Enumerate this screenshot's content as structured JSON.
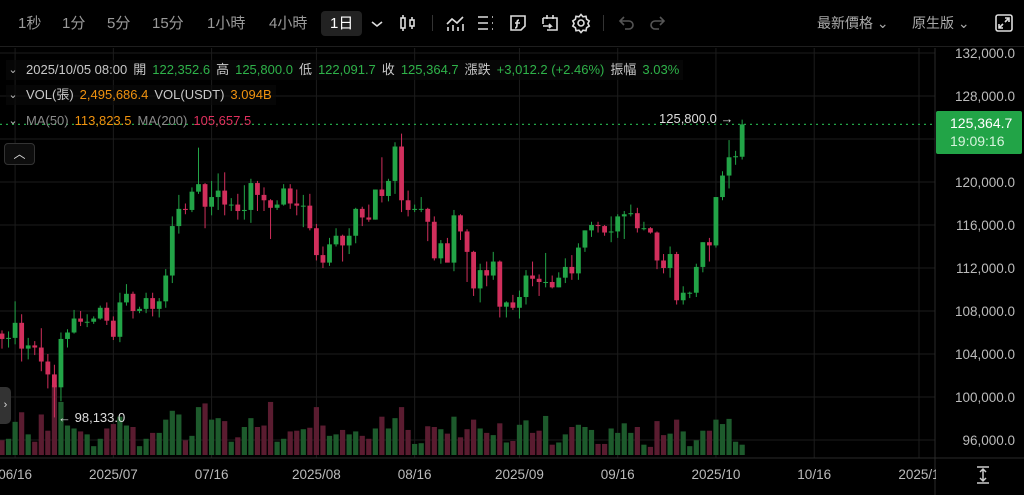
{
  "toolbar": {
    "timeframes": [
      "1秒",
      "1分",
      "5分",
      "15分",
      "1小時",
      "4小時",
      "1日"
    ],
    "active_timeframe": "1日",
    "price_type": "最新價格",
    "chart_mode": "原生版"
  },
  "legend": {
    "datetime": "2025/10/05 08:00",
    "open_label": "開",
    "open": "122,352.6",
    "high_label": "高",
    "high": "125,800.0",
    "low_label": "低",
    "low": "122,091.7",
    "close_label": "收",
    "close": "125,364.7",
    "change_label": "漲跌",
    "change": "+3,012.2 (+2.46%)",
    "amplitude_label": "振幅",
    "amplitude": "3.03%",
    "vol_contracts_label": "VOL(張)",
    "vol_contracts": "2,495,686.4",
    "vol_usdt_label": "VOL(USDT)",
    "vol_usdt": "3.094B",
    "ma50_label": "MA(50)",
    "ma50": "113,823.5",
    "ma200_label": "MA(200)",
    "ma200": "105,657.5"
  },
  "markers": {
    "high": "125,800.0",
    "low": "98,133.0"
  },
  "price_tag": {
    "price": "125,364.7",
    "countdown": "19:09:16"
  },
  "colors": {
    "up": "#22a447",
    "down": "#d12f5c",
    "vol_up": "#1d5a2c",
    "vol_down": "#5a1c30",
    "grid": "#1c1c1c"
  },
  "chart_data": {
    "type": "candlestick",
    "price_unit": 1000,
    "y_ticks": [
      "132,000.0",
      "128,000.0",
      "120,000.0",
      "116,000.0",
      "112,000.0",
      "108,000.0",
      "104,000.0",
      "100,000.0",
      "96,000.0"
    ],
    "y_tick_values": [
      132,
      128,
      120,
      116,
      112,
      108,
      104,
      100,
      96
    ],
    "x_ticks": [
      [
        "06/16",
        2
      ],
      [
        "2025/07",
        17
      ],
      [
        "07/16",
        32
      ],
      [
        "2025/08",
        48
      ],
      [
        "08/16",
        63
      ],
      [
        "2025/09",
        79
      ],
      [
        "09/16",
        94
      ],
      [
        "2025/10",
        109
      ],
      [
        "10/16",
        124
      ],
      [
        "2025/1",
        140
      ]
    ],
    "fields": [
      "date",
      "open",
      "high",
      "low",
      "close",
      "volume"
    ],
    "candles": [
      [
        "06/14",
        105.9,
        106.2,
        104.5,
        105.4,
        20
      ],
      [
        "06/15",
        105.4,
        106.1,
        104.6,
        105.5,
        22
      ],
      [
        "06/16",
        105.5,
        108.9,
        104.9,
        106.9,
        45
      ],
      [
        "06/17",
        106.9,
        107.7,
        103.3,
        104.5,
        58
      ],
      [
        "06/18",
        104.5,
        105.5,
        103.5,
        104.8,
        28
      ],
      [
        "06/19",
        104.8,
        105.2,
        103.9,
        104.6,
        18
      ],
      [
        "06/20",
        104.6,
        106.4,
        102.4,
        103.3,
        55
      ],
      [
        "06/21",
        103.3,
        104.0,
        100.8,
        102.1,
        33
      ],
      [
        "06/22",
        102.1,
        103.0,
        98.1,
        100.9,
        95
      ],
      [
        "06/23",
        100.9,
        106.0,
        99.6,
        105.4,
        72
      ],
      [
        "06/24",
        105.4,
        106.3,
        104.6,
        106.0,
        40
      ],
      [
        "06/25",
        106.0,
        108.1,
        105.9,
        107.3,
        36
      ],
      [
        "06/26",
        107.3,
        108.0,
        106.6,
        107.0,
        32
      ],
      [
        "06/27",
        107.0,
        107.7,
        106.5,
        107.0,
        28
      ],
      [
        "06/28",
        107.0,
        107.5,
        106.8,
        107.3,
        12
      ],
      [
        "06/29",
        107.3,
        108.5,
        107.2,
        108.3,
        22
      ],
      [
        "06/30",
        108.3,
        108.8,
        106.7,
        107.1,
        36
      ],
      [
        "07/01",
        107.1,
        107.5,
        105.3,
        105.6,
        42
      ],
      [
        "07/02",
        105.6,
        109.7,
        105.1,
        108.8,
        52
      ],
      [
        "07/03",
        108.8,
        110.5,
        108.5,
        109.6,
        40
      ],
      [
        "07/04",
        109.6,
        109.8,
        107.3,
        108.0,
        38
      ],
      [
        "07/05",
        108.0,
        108.4,
        107.8,
        108.2,
        12
      ],
      [
        "07/06",
        108.2,
        109.7,
        107.8,
        109.2,
        22
      ],
      [
        "07/07",
        109.2,
        109.7,
        107.5,
        108.2,
        30
      ],
      [
        "07/08",
        108.2,
        109.2,
        107.4,
        108.9,
        30
      ],
      [
        "07/09",
        108.9,
        111.9,
        108.3,
        111.3,
        48
      ],
      [
        "07/10",
        111.3,
        116.8,
        110.6,
        115.9,
        60
      ],
      [
        "07/11",
        115.9,
        118.8,
        115.2,
        117.5,
        55
      ],
      [
        "07/12",
        117.5,
        118.0,
        117.0,
        117.4,
        20
      ],
      [
        "07/13",
        117.4,
        119.5,
        117.2,
        119.1,
        26
      ],
      [
        "07/14",
        119.1,
        123.2,
        118.9,
        119.8,
        65
      ],
      [
        "07/15",
        119.8,
        119.9,
        115.7,
        117.7,
        70
      ],
      [
        "07/16",
        117.7,
        120.1,
        116.9,
        118.6,
        48
      ],
      [
        "07/17",
        118.6,
        120.8,
        117.4,
        119.2,
        50
      ],
      [
        "07/18",
        119.2,
        120.9,
        116.9,
        117.9,
        46
      ],
      [
        "07/19",
        117.9,
        118.5,
        117.3,
        117.9,
        18
      ],
      [
        "07/20",
        117.9,
        118.9,
        116.5,
        117.3,
        24
      ],
      [
        "07/21",
        117.3,
        119.7,
        116.5,
        117.4,
        38
      ],
      [
        "07/22",
        117.4,
        120.3,
        116.2,
        119.9,
        50
      ],
      [
        "07/23",
        119.9,
        120.1,
        117.3,
        118.8,
        38
      ],
      [
        "07/24",
        118.8,
        119.5,
        117.3,
        118.3,
        40
      ],
      [
        "07/25",
        118.3,
        118.4,
        114.7,
        117.6,
        72
      ],
      [
        "07/26",
        117.6,
        118.3,
        117.4,
        117.9,
        18
      ],
      [
        "07/27",
        117.9,
        119.8,
        117.8,
        119.4,
        22
      ],
      [
        "07/28",
        119.4,
        119.8,
        117.5,
        118.0,
        32
      ],
      [
        "07/29",
        118.0,
        119.3,
        116.9,
        117.8,
        33
      ],
      [
        "07/30",
        117.8,
        118.8,
        115.8,
        117.8,
        35
      ],
      [
        "07/31",
        117.8,
        118.9,
        115.5,
        115.7,
        37
      ],
      [
        "08/01",
        115.7,
        116.1,
        112.7,
        113.2,
        65
      ],
      [
        "08/02",
        113.2,
        114.0,
        112.0,
        112.5,
        40
      ],
      [
        "08/03",
        112.5,
        114.8,
        112.2,
        114.2,
        26
      ],
      [
        "08/04",
        114.2,
        115.7,
        114.0,
        115.0,
        28
      ],
      [
        "08/05",
        115.0,
        115.1,
        112.6,
        114.1,
        34
      ],
      [
        "08/06",
        114.1,
        115.7,
        113.3,
        115.0,
        28
      ],
      [
        "08/07",
        115.0,
        117.6,
        114.3,
        117.5,
        32
      ],
      [
        "08/08",
        117.5,
        117.7,
        115.9,
        116.7,
        26
      ],
      [
        "08/09",
        116.7,
        117.9,
        116.3,
        116.5,
        22
      ],
      [
        "08/10",
        116.5,
        119.3,
        116.5,
        119.3,
        36
      ],
      [
        "08/11",
        119.3,
        122.3,
        118.1,
        118.7,
        52
      ],
      [
        "08/12",
        118.7,
        120.3,
        118.2,
        120.1,
        36
      ],
      [
        "08/13",
        120.1,
        123.7,
        118.9,
        123.3,
        50
      ],
      [
        "08/14",
        123.3,
        124.5,
        117.2,
        118.3,
        65
      ],
      [
        "08/15",
        118.3,
        119.2,
        116.8,
        117.4,
        34
      ],
      [
        "08/16",
        117.4,
        117.9,
        117.2,
        117.5,
        15
      ],
      [
        "08/17",
        117.5,
        118.6,
        117.2,
        117.5,
        16
      ],
      [
        "08/18",
        117.5,
        117.6,
        114.5,
        116.3,
        39
      ],
      [
        "08/19",
        116.3,
        116.8,
        112.7,
        112.9,
        38
      ],
      [
        "08/20",
        112.9,
        114.6,
        112.4,
        114.3,
        35
      ],
      [
        "08/21",
        114.3,
        114.8,
        112.6,
        112.5,
        29
      ],
      [
        "08/22",
        112.5,
        117.4,
        111.7,
        116.9,
        52
      ],
      [
        "08/23",
        116.9,
        117.0,
        114.6,
        115.4,
        24
      ],
      [
        "08/24",
        115.4,
        115.6,
        110.7,
        113.5,
        35
      ],
      [
        "08/25",
        113.5,
        113.6,
        109.4,
        110.1,
        48
      ],
      [
        "08/26",
        110.1,
        112.4,
        108.8,
        111.8,
        36
      ],
      [
        "08/27",
        111.8,
        112.6,
        110.3,
        111.3,
        30
      ],
      [
        "08/28",
        111.3,
        113.5,
        110.9,
        112.6,
        27
      ],
      [
        "08/29",
        112.6,
        112.7,
        107.4,
        108.4,
        43
      ],
      [
        "08/30",
        108.4,
        108.9,
        107.4,
        108.8,
        17
      ],
      [
        "08/31",
        108.8,
        109.5,
        108.1,
        108.3,
        19
      ],
      [
        "09/01",
        108.3,
        109.9,
        107.3,
        109.3,
        41
      ],
      [
        "09/02",
        109.3,
        111.8,
        108.6,
        111.3,
        47
      ],
      [
        "09/03",
        111.3,
        112.6,
        110.3,
        111.0,
        30
      ],
      [
        "09/04",
        111.0,
        111.4,
        109.4,
        110.7,
        33
      ],
      [
        "09/05",
        110.7,
        113.4,
        110.2,
        110.7,
        53
      ],
      [
        "09/06",
        110.7,
        111.3,
        110.1,
        110.2,
        14
      ],
      [
        "09/07",
        110.2,
        111.6,
        110.2,
        111.1,
        17
      ],
      [
        "09/08",
        111.1,
        112.9,
        110.6,
        112.1,
        28
      ],
      [
        "09/09",
        112.1,
        113.2,
        110.9,
        111.5,
        38
      ],
      [
        "09/10",
        111.5,
        114.3,
        110.9,
        113.9,
        41
      ],
      [
        "09/11",
        113.9,
        115.5,
        113.5,
        115.5,
        38
      ],
      [
        "09/12",
        115.5,
        116.3,
        114.9,
        116.0,
        34
      ],
      [
        "09/13",
        116.0,
        116.3,
        115.3,
        115.9,
        15
      ],
      [
        "09/14",
        115.9,
        116.0,
        115.0,
        115.3,
        15
      ],
      [
        "09/15",
        115.3,
        116.8,
        114.4,
        115.4,
        36
      ],
      [
        "09/16",
        115.4,
        117.0,
        114.8,
        116.8,
        30
      ],
      [
        "09/17",
        116.8,
        117.3,
        114.7,
        117.0,
        43
      ],
      [
        "09/18",
        117.0,
        117.9,
        116.8,
        117.1,
        30
      ],
      [
        "09/19",
        117.1,
        117.6,
        115.3,
        115.7,
        38
      ],
      [
        "09/20",
        115.7,
        116.3,
        115.5,
        115.7,
        14
      ],
      [
        "09/21",
        115.7,
        115.8,
        115.2,
        115.3,
        11
      ],
      [
        "09/22",
        115.3,
        115.4,
        111.9,
        112.7,
        46
      ],
      [
        "09/23",
        112.7,
        113.3,
        111.5,
        112.0,
        27
      ],
      [
        "09/24",
        112.0,
        114.0,
        111.1,
        113.3,
        29
      ],
      [
        "09/25",
        113.3,
        113.5,
        108.6,
        109.0,
        48
      ],
      [
        "09/26",
        109.0,
        110.3,
        108.6,
        109.7,
        32
      ],
      [
        "09/27",
        109.7,
        109.8,
        109.2,
        109.7,
        12
      ],
      [
        "09/28",
        109.7,
        112.4,
        109.3,
        112.1,
        20
      ],
      [
        "09/29",
        112.1,
        114.4,
        111.6,
        114.4,
        33
      ],
      [
        "09/30",
        114.4,
        114.8,
        112.6,
        114.1,
        33
      ],
      [
        "10/01",
        114.1,
        118.6,
        113.9,
        118.6,
        48
      ],
      [
        "10/02",
        118.6,
        121.0,
        118.3,
        120.6,
        42
      ],
      [
        "10/03",
        120.6,
        123.9,
        119.4,
        122.3,
        49
      ],
      [
        "10/04",
        122.3,
        122.9,
        121.6,
        122.4,
        18
      ],
      [
        "10/05",
        122.35,
        125.8,
        122.09,
        125.36,
        14
      ]
    ]
  }
}
